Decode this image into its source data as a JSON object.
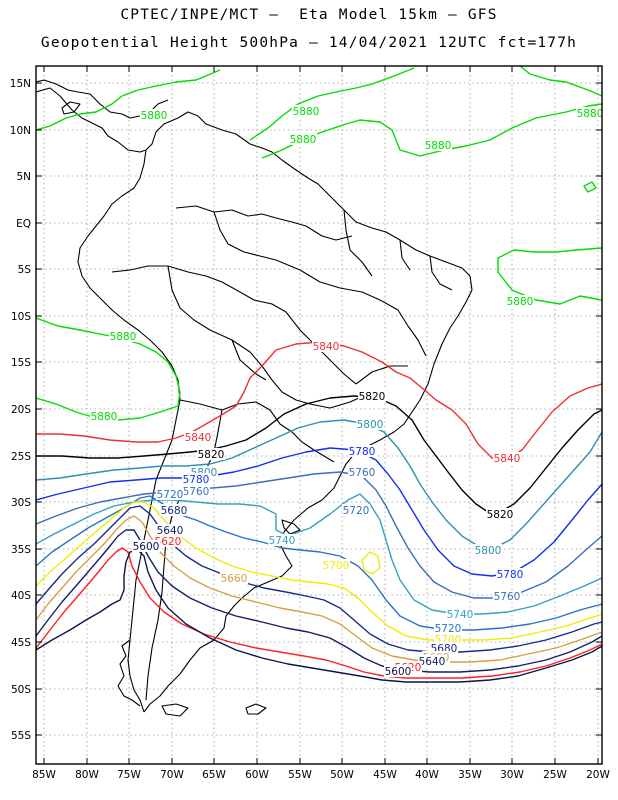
{
  "title_line1": "CPTEC/INPE/MCT –  Eta Model 15km – GFS",
  "title_line2": "Geopotential Height 500hPa – 14/04/2021 12UTC fct=177h",
  "lat_labels": [
    "15N",
    "10N",
    "5N",
    "EQ",
    "5S",
    "10S",
    "15S",
    "20S",
    "25S",
    "30S",
    "35S",
    "40S",
    "45S",
    "50S",
    "55S"
  ],
  "lon_labels": [
    "85W",
    "80W",
    "75W",
    "70W",
    "65W",
    "60W",
    "55W",
    "50W",
    "45W",
    "40W",
    "35W",
    "30W",
    "25W",
    "20W"
  ],
  "colors": {
    "c5880": "#00dd00",
    "c5840": "#ee3030",
    "c5820": "#000000",
    "c5800": "#2e8fb0",
    "c5780": "#1030ee",
    "c5760": "#3a6fb8",
    "c5740": "#34a0c8",
    "c5720": "#2a72c8",
    "c5700": "#eeee00",
    "c5680": "#1a2a88",
    "c5660": "#d8a040",
    "c5640": "#14206a",
    "c5620": "#ff2020",
    "c5600": "#0a1450"
  },
  "contour_labels": [
    {
      "text": "5880",
      "color": "c5880"
    },
    {
      "text": "5880",
      "color": "c5880"
    },
    {
      "text": "5880",
      "color": "c5880"
    },
    {
      "text": "5880",
      "color": "c5880"
    },
    {
      "text": "5880",
      "color": "c5880"
    },
    {
      "text": "5880",
      "color": "c5880"
    },
    {
      "text": "5880",
      "color": "c5880"
    },
    {
      "text": "5880",
      "color": "c5880"
    },
    {
      "text": "5840",
      "color": "c5840"
    },
    {
      "text": "5840",
      "color": "c5840"
    },
    {
      "text": "5840",
      "color": "c5840"
    },
    {
      "text": "5820",
      "color": "c5820"
    },
    {
      "text": "5820",
      "color": "c5820"
    },
    {
      "text": "5820",
      "color": "c5820"
    },
    {
      "text": "5800",
      "color": "c5800"
    },
    {
      "text": "5800",
      "color": "c5800"
    },
    {
      "text": "5800",
      "color": "c5800"
    },
    {
      "text": "5780",
      "color": "c5780"
    },
    {
      "text": "5780",
      "color": "c5780"
    },
    {
      "text": "5780",
      "color": "c5780"
    },
    {
      "text": "5760",
      "color": "c5760"
    },
    {
      "text": "5760",
      "color": "c5760"
    },
    {
      "text": "5760",
      "color": "c5760"
    },
    {
      "text": "5740",
      "color": "c5740"
    },
    {
      "text": "5740",
      "color": "c5740"
    },
    {
      "text": "5720",
      "color": "c5720"
    },
    {
      "text": "5720",
      "color": "c5720"
    },
    {
      "text": "5720",
      "color": "c5720"
    },
    {
      "text": "5700",
      "color": "c5700"
    },
    {
      "text": "5700",
      "color": "c5700"
    },
    {
      "text": "5680",
      "color": "c5680"
    },
    {
      "text": "5680",
      "color": "c5680"
    },
    {
      "text": "5660",
      "color": "c5660"
    },
    {
      "text": "5660",
      "color": "c5660"
    },
    {
      "text": "5640",
      "color": "c5640"
    },
    {
      "text": "5640",
      "color": "c5640"
    },
    {
      "text": "5620",
      "color": "c5620"
    },
    {
      "text": "5620",
      "color": "c5620"
    },
    {
      "text": "5600",
      "color": "c5600"
    },
    {
      "text": "5600",
      "color": "c5600"
    }
  ]
}
